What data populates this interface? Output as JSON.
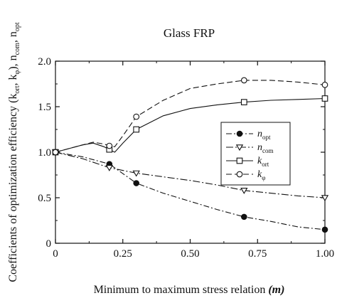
{
  "chart_data": {
    "type": "line",
    "title": "Glass FRP",
    "xlabel": "Minimum to maximum stress relation",
    "xlabel_symbol": "(m)",
    "ylabel_main": "Coefficients of optimization efficiency (k",
    "ylabel_sub1": "ort",
    "ylabel_mid1": ", k",
    "ylabel_sub2": "φ",
    "ylabel_mid2": "), n",
    "ylabel_sub3": "com",
    "ylabel_mid3": ", n",
    "ylabel_sub4": "opt",
    "xlim": [
      0,
      1.0
    ],
    "ylim": [
      0,
      2.0
    ],
    "x_ticks": [
      0,
      0.25,
      0.5,
      0.75,
      1.0
    ],
    "x_tick_labels": [
      "0",
      "0.25",
      "0.50",
      "0.75",
      "1.00"
    ],
    "y_ticks": [
      0,
      0.5,
      1.0,
      1.5,
      2.0
    ],
    "y_tick_labels": [
      "0",
      "0.5",
      "1.0",
      "1.5",
      "2.0"
    ],
    "grid": false,
    "legend_position": "right-middle",
    "series": [
      {
        "name": "n",
        "name_sub": "opt",
        "marker": "filled-circle",
        "dash": "8,3,2,3",
        "line": [
          [
            0,
            1.0
          ],
          [
            0.1,
            0.95
          ],
          [
            0.2,
            0.87
          ],
          [
            0.3,
            0.66
          ],
          [
            0.4,
            0.55
          ],
          [
            0.5,
            0.46
          ],
          [
            0.6,
            0.37
          ],
          [
            0.7,
            0.29
          ],
          [
            0.8,
            0.24
          ],
          [
            0.9,
            0.18
          ],
          [
            1.0,
            0.15
          ]
        ],
        "markers": [
          [
            0,
            1.0
          ],
          [
            0.2,
            0.87
          ],
          [
            0.3,
            0.66
          ],
          [
            0.7,
            0.29
          ],
          [
            1.0,
            0.15
          ]
        ]
      },
      {
        "name": "n",
        "name_sub": "com",
        "marker": "open-triangle-down",
        "dash": "10,3,2,3",
        "line": [
          [
            0,
            1.0
          ],
          [
            0.1,
            0.93
          ],
          [
            0.2,
            0.83
          ],
          [
            0.3,
            0.77
          ],
          [
            0.4,
            0.73
          ],
          [
            0.5,
            0.69
          ],
          [
            0.6,
            0.64
          ],
          [
            0.7,
            0.58
          ],
          [
            0.8,
            0.55
          ],
          [
            0.9,
            0.52
          ],
          [
            1.0,
            0.5
          ]
        ],
        "markers": [
          [
            0,
            1.0
          ],
          [
            0.2,
            0.83
          ],
          [
            0.3,
            0.77
          ],
          [
            0.7,
            0.58
          ],
          [
            1.0,
            0.5
          ]
        ]
      },
      {
        "name": "k",
        "name_sub": "ort",
        "marker": "open-square",
        "dash": "",
        "line": [
          [
            0,
            1.0
          ],
          [
            0.05,
            1.04
          ],
          [
            0.1,
            1.08
          ],
          [
            0.14,
            1.1
          ],
          [
            0.18,
            1.06
          ],
          [
            0.2,
            1.03
          ],
          [
            0.22,
            1.0
          ],
          [
            0.25,
            1.1
          ],
          [
            0.3,
            1.25
          ],
          [
            0.4,
            1.4
          ],
          [
            0.5,
            1.48
          ],
          [
            0.6,
            1.52
          ],
          [
            0.7,
            1.55
          ],
          [
            0.8,
            1.57
          ],
          [
            0.9,
            1.58
          ],
          [
            1.0,
            1.59
          ]
        ],
        "markers": [
          [
            0,
            1.0
          ],
          [
            0.2,
            1.03
          ],
          [
            0.3,
            1.25
          ],
          [
            0.7,
            1.55
          ],
          [
            1.0,
            1.59
          ]
        ]
      },
      {
        "name": "k",
        "name_sub": "φ",
        "marker": "open-circle",
        "dash": "8,4",
        "line": [
          [
            0,
            1.0
          ],
          [
            0.05,
            1.04
          ],
          [
            0.1,
            1.08
          ],
          [
            0.14,
            1.11
          ],
          [
            0.18,
            1.09
          ],
          [
            0.2,
            1.07
          ],
          [
            0.22,
            1.06
          ],
          [
            0.25,
            1.18
          ],
          [
            0.3,
            1.39
          ],
          [
            0.4,
            1.57
          ],
          [
            0.5,
            1.7
          ],
          [
            0.6,
            1.75
          ],
          [
            0.7,
            1.79
          ],
          [
            0.8,
            1.79
          ],
          [
            0.9,
            1.77
          ],
          [
            1.0,
            1.74
          ]
        ],
        "markers": [
          [
            0,
            1.0
          ],
          [
            0.2,
            1.07
          ],
          [
            0.3,
            1.39
          ],
          [
            0.7,
            1.79
          ],
          [
            1.0,
            1.74
          ]
        ]
      }
    ]
  }
}
